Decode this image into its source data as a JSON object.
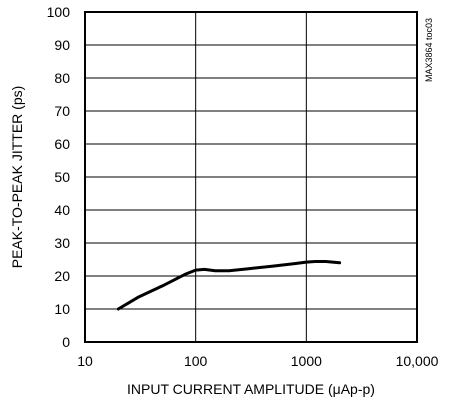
{
  "chart_data": {
    "type": "line",
    "title": "",
    "xlabel": "INPUT CURRENT AMPLITUDE (μAp-p)",
    "ylabel": "PEAK-TO-PEAK JITTER (ps)",
    "x_scale": "log",
    "xlim": [
      10,
      10000
    ],
    "ylim": [
      0,
      100
    ],
    "x_ticks": [
      10,
      100,
      1000,
      10000
    ],
    "x_tick_labels": [
      "10",
      "100",
      "1000",
      "10,000"
    ],
    "y_ticks": [
      0,
      10,
      20,
      30,
      40,
      50,
      60,
      70,
      80,
      90,
      100
    ],
    "y_tick_labels": [
      "0",
      "10",
      "20",
      "30",
      "40",
      "50",
      "60",
      "70",
      "80",
      "90",
      "100"
    ],
    "grid": true,
    "annotation": "MAX3864 toc03",
    "series": [
      {
        "x": [
          20,
          30,
          50,
          80,
          100,
          120,
          150,
          200,
          300,
          500,
          800,
          1000,
          1200,
          1500,
          2000
        ],
        "values": [
          10,
          13.5,
          17,
          20.5,
          21.8,
          22,
          21.6,
          21.6,
          22.2,
          23,
          23.8,
          24.2,
          24.4,
          24.4,
          24
        ]
      }
    ]
  }
}
